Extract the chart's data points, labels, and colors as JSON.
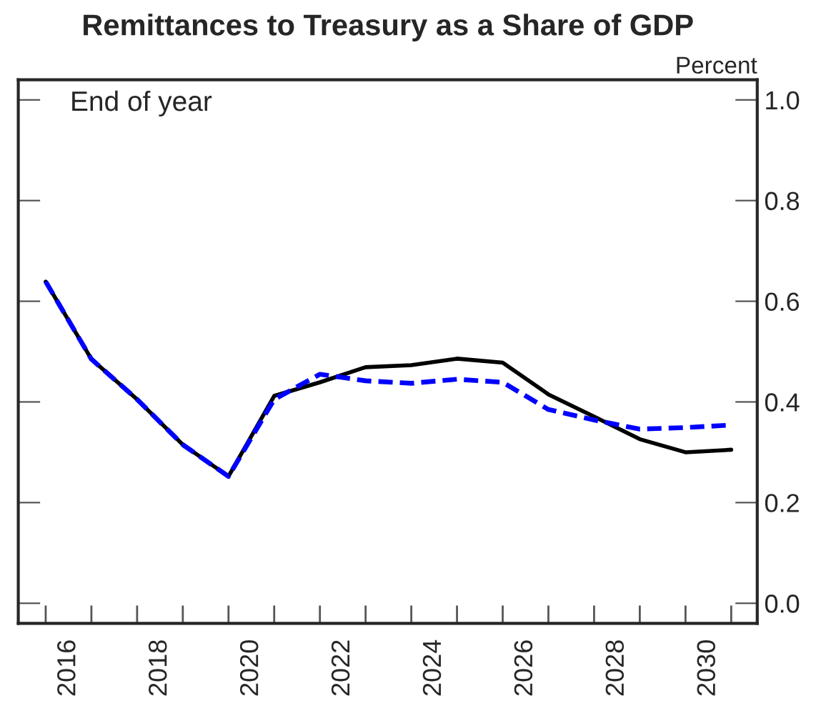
{
  "chart_data": {
    "type": "line",
    "title": "Remittances to Treasury as a Share of GDP",
    "ylabel": "Percent",
    "annotations": [
      "End of year"
    ],
    "x": [
      2016,
      2017,
      2018,
      2019,
      2020,
      2021,
      2022,
      2023,
      2024,
      2025,
      2026,
      2027,
      2028,
      2029,
      2030,
      2031
    ],
    "series": [
      {
        "color": "#000000",
        "line_style": "solid",
        "values": [
          0.639,
          0.485,
          0.405,
          0.315,
          0.252,
          0.412,
          0.439,
          0.469,
          0.473,
          0.486,
          0.478,
          0.415,
          0.371,
          0.326,
          0.3,
          0.305
        ]
      },
      {
        "color": "#0000ff",
        "line_style": "dashed",
        "values": [
          0.639,
          0.485,
          0.405,
          0.315,
          0.252,
          0.405,
          0.455,
          0.442,
          0.437,
          0.445,
          0.439,
          0.385,
          0.364,
          0.346,
          0.349,
          0.354
        ]
      }
    ],
    "xlim": [
      2015.4,
      2031.57
    ],
    "xticks": [
      {
        "value": 2016,
        "label": null
      },
      {
        "value": 2016.5,
        "label": "2016"
      },
      {
        "value": 2017,
        "label": null
      },
      {
        "value": 2018,
        "label": null
      },
      {
        "value": 2018.5,
        "label": "2018"
      },
      {
        "value": 2019,
        "label": null
      },
      {
        "value": 2020,
        "label": null
      },
      {
        "value": 2020.5,
        "label": "2020"
      },
      {
        "value": 2021,
        "label": null
      },
      {
        "value": 2022,
        "label": null
      },
      {
        "value": 2022.5,
        "label": "2022"
      },
      {
        "value": 2023,
        "label": null
      },
      {
        "value": 2024,
        "label": null
      },
      {
        "value": 2024.5,
        "label": "2024"
      },
      {
        "value": 2025,
        "label": null
      },
      {
        "value": 2026,
        "label": null
      },
      {
        "value": 2026.5,
        "label": "2026"
      },
      {
        "value": 2027,
        "label": null
      },
      {
        "value": 2028,
        "label": null
      },
      {
        "value": 2028.5,
        "label": "2028"
      },
      {
        "value": 2029,
        "label": null
      },
      {
        "value": 2030,
        "label": null
      },
      {
        "value": 2030.5,
        "label": "2030"
      },
      {
        "value": 2031,
        "label": null
      }
    ],
    "ylim": [
      -0.04,
      1.04
    ],
    "yticks": [
      {
        "value": 0.0,
        "label": "0.0"
      },
      {
        "value": 0.2,
        "label": "0.2"
      },
      {
        "value": 0.4,
        "label": "0.4"
      },
      {
        "value": 0.6,
        "label": "0.6"
      },
      {
        "value": 0.8,
        "label": "0.8"
      },
      {
        "value": 1.0,
        "label": "1.0"
      }
    ],
    "marker": "none"
  }
}
